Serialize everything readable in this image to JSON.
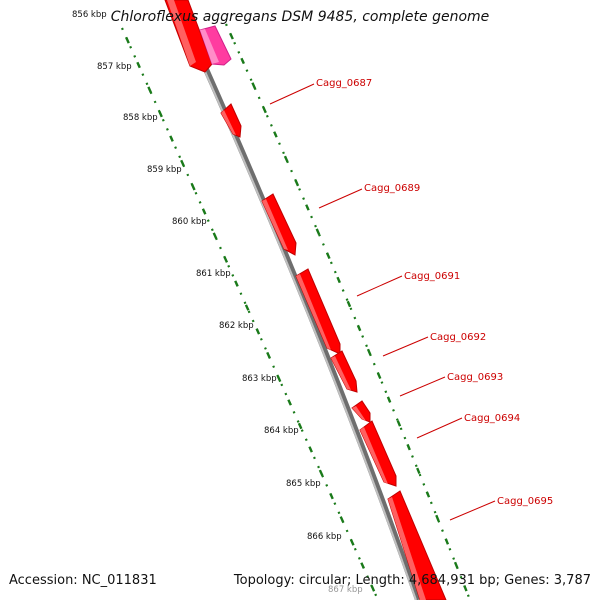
{
  "title": "Chloroflexus aggregans DSM 9485, complete genome",
  "footer": {
    "accession": "Accession: NC_011831",
    "summary": "Topology: circular; Length: 4,684,931 bp; Genes: 3,787"
  },
  "colors": {
    "backbone": "#8a8a8a",
    "gene": "#ff0000",
    "gene_other": "#ff3ca0",
    "ticks": "#1a7a1a",
    "label": "#cc0000"
  },
  "scale_ticks": [
    {
      "label": "856 kbp"
    },
    {
      "label": "857 kbp"
    },
    {
      "label": "858 kbp"
    },
    {
      "label": "859 kbp"
    },
    {
      "label": "860 kbp"
    },
    {
      "label": "861 kbp"
    },
    {
      "label": "862 kbp"
    },
    {
      "label": "863 kbp"
    },
    {
      "label": "864 kbp"
    },
    {
      "label": "865 kbp"
    },
    {
      "label": "866 kbp"
    },
    {
      "label": "867 kbp"
    }
  ],
  "genes": [
    {
      "label": "Cagg_0687"
    },
    {
      "label": "Cagg_0689"
    },
    {
      "label": "Cagg_0691"
    },
    {
      "label": "Cagg_0692"
    },
    {
      "label": "Cagg_0693"
    },
    {
      "label": "Cagg_0694"
    },
    {
      "label": "Cagg_0695"
    }
  ]
}
